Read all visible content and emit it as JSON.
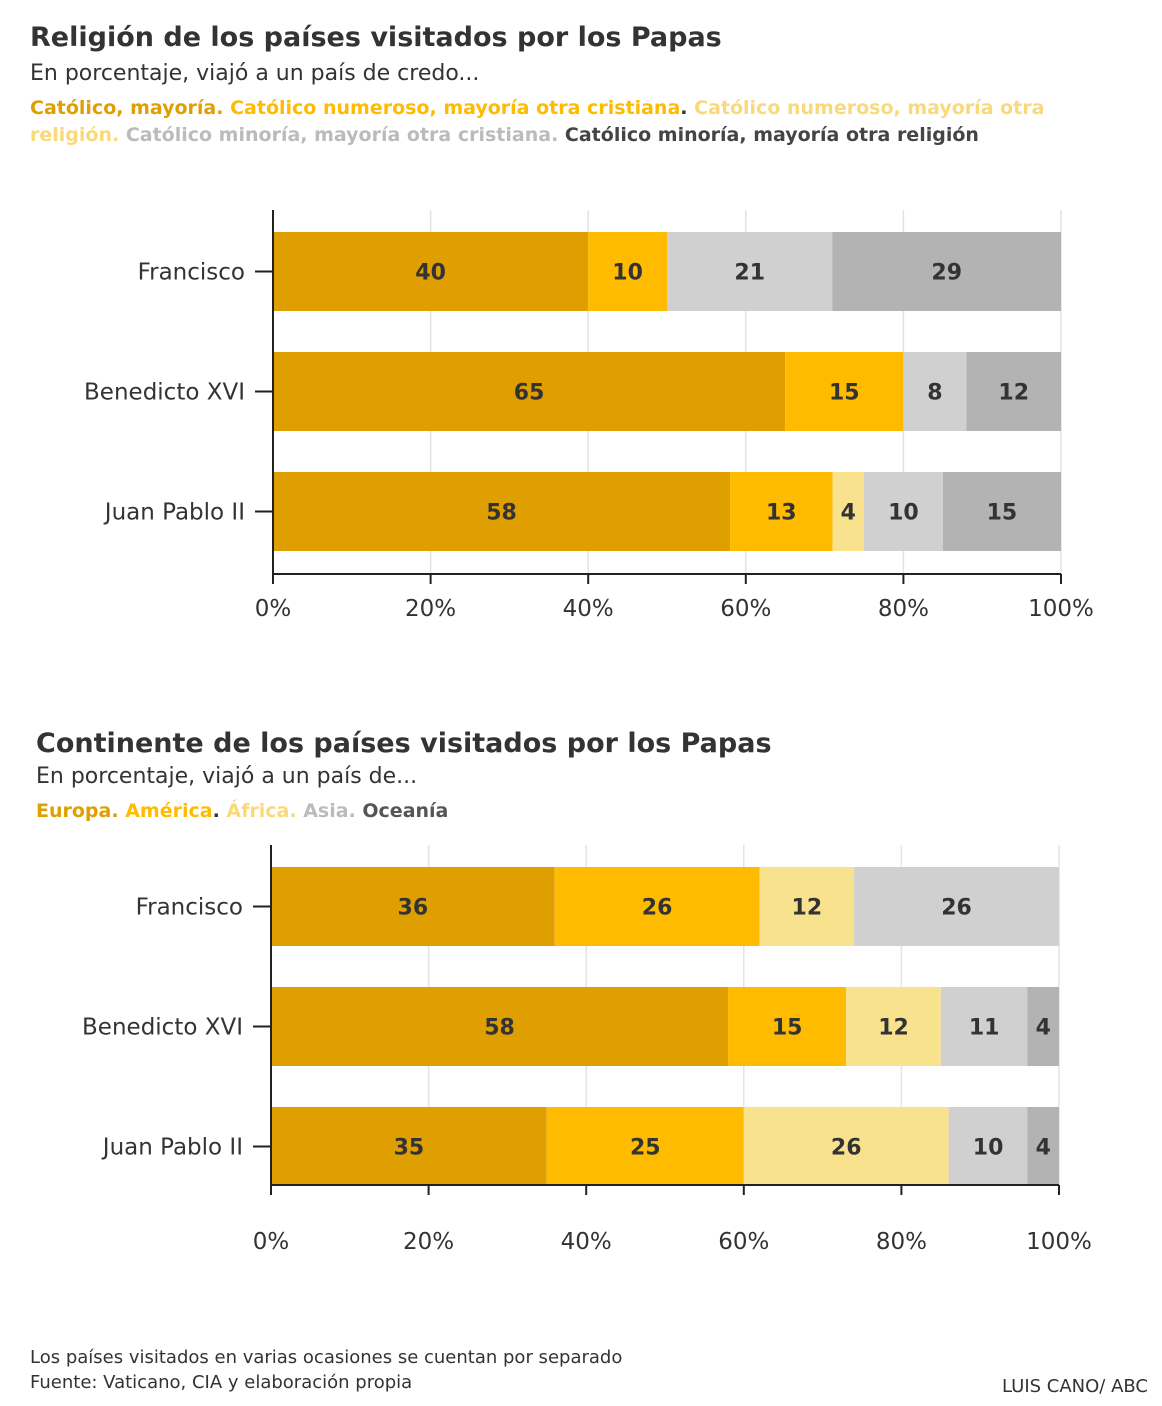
{
  "footnote": "Los países visitados en varias ocasiones se cuentan por separado",
  "source": "Fuente: Vaticano, CIA y elaboración propia",
  "credit": "LUIS CANO/ ABC",
  "charts": [
    {
      "title": "Religión de los países visitados por los Papas",
      "subtitle": "En porcentaje, viajó a un país de credo...",
      "legend": [
        {
          "label": "Católico, mayoría.",
          "color": "#E09F00"
        },
        {
          "label": "Católico numeroso, mayoría otra cristiana",
          "color": "#FFBB00"
        },
        {
          "label": ".",
          "color": "#333333"
        },
        {
          "label": "Católico numeroso, mayoría otra religión.",
          "color": "#F9E28E"
        },
        {
          "label": "Católico minoría, mayoría otra cristiana.",
          "color": "#BBBBBB"
        },
        {
          "label": "Católico minoría, mayoría otra religión",
          "color": "#444444"
        }
      ]
    },
    {
      "title": "Continente de los países visitados por los Papas",
      "subtitle": "En porcentaje, viajó a un país de...",
      "legend": [
        {
          "label": "Europa.",
          "color": "#E09F00"
        },
        {
          "label": "América",
          "color": "#FFBB00"
        },
        {
          "label": ".",
          "color": "#333333"
        },
        {
          "label": "África.",
          "color": "#F9E28E"
        },
        {
          "label": "Asia.",
          "color": "#BBBBBB"
        },
        {
          "label": "Oceanía",
          "color": "#555555"
        }
      ]
    }
  ],
  "chart_data": [
    {
      "type": "bar",
      "orientation": "horizontal",
      "stacked": true,
      "title": "Religión de los países visitados por los Papas",
      "categories": [
        "Francisco",
        "Benedicto XVI",
        "Juan Pablo II"
      ],
      "series": [
        {
          "name": "Católico, mayoría",
          "color": "#E09F00",
          "values": [
            40,
            65,
            58
          ]
        },
        {
          "name": "Católico numeroso, mayoría otra cristiana",
          "color": "#FFBB00",
          "values": [
            10,
            15,
            13
          ]
        },
        {
          "name": "Católico numeroso, mayoría otra religión",
          "color": "#F9E28E",
          "values": [
            0,
            0,
            4
          ]
        },
        {
          "name": "Católico minoría, mayoría otra cristiana",
          "color": "#D0D0D0",
          "values": [
            21,
            8,
            10
          ]
        },
        {
          "name": "Católico minoría, mayoría otra religión",
          "color": "#B3B3B3",
          "values": [
            29,
            12,
            15
          ]
        }
      ],
      "xlim": [
        0,
        100
      ],
      "xticks": [
        "0%",
        "20%",
        "40%",
        "60%",
        "80%",
        "100%"
      ],
      "grid": true
    },
    {
      "type": "bar",
      "orientation": "horizontal",
      "stacked": true,
      "title": "Continente de los países visitados por los Papas",
      "categories": [
        "Francisco",
        "Benedicto XVI",
        "Juan Pablo II"
      ],
      "series": [
        {
          "name": "Europa",
          "color": "#E09F00",
          "values": [
            36,
            58,
            35
          ]
        },
        {
          "name": "América",
          "color": "#FFBB00",
          "values": [
            26,
            15,
            25
          ]
        },
        {
          "name": "África",
          "color": "#F9E28E",
          "values": [
            12,
            12,
            26
          ]
        },
        {
          "name": "Asia",
          "color": "#D0D0D0",
          "values": [
            26,
            11,
            10
          ]
        },
        {
          "name": "Oceanía",
          "color": "#B3B3B3",
          "values": [
            0,
            4,
            4
          ]
        }
      ],
      "xlim": [
        0,
        100
      ],
      "xticks": [
        "0%",
        "20%",
        "40%",
        "60%",
        "80%",
        "100%"
      ],
      "grid": true
    }
  ]
}
